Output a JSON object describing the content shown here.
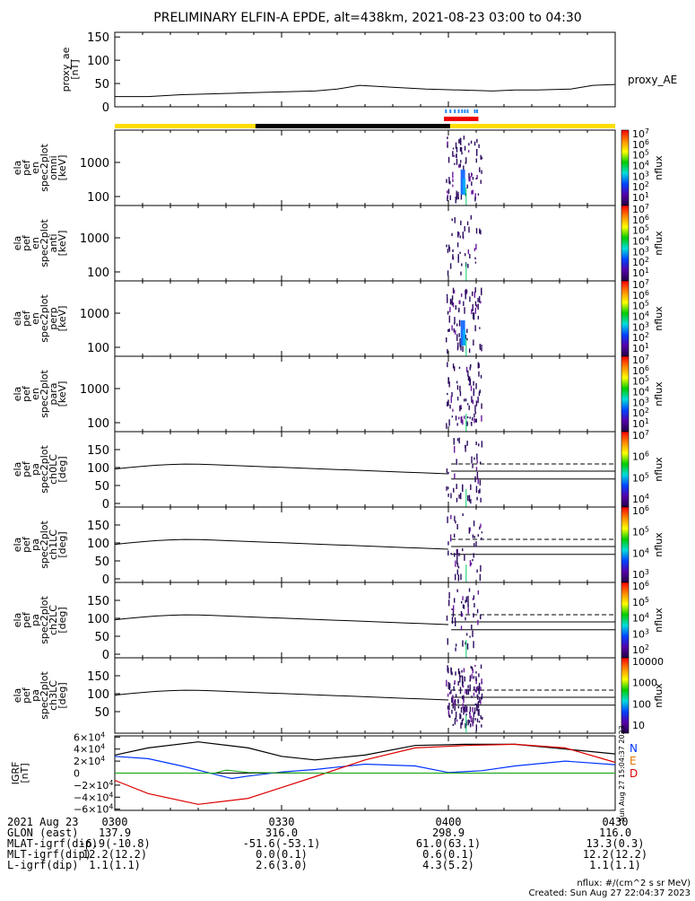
{
  "chart_data": {
    "type": "line",
    "title": "PRELIMINARY ELFIN-A EPDE, alt=438km, 2021-08-23 03:00 to 04:30",
    "ae_panel": {
      "ylabel_lines": [
        "proxy_ae",
        "[nT]"
      ],
      "ylim": [
        0,
        160
      ],
      "yticks": [
        "150",
        "100",
        "50",
        "0"
      ],
      "series": [
        {
          "name": "proxy_AE",
          "x": [
            0,
            6,
            12,
            18,
            24,
            30,
            36,
            40,
            44,
            50,
            56,
            62,
            68,
            72,
            76,
            82,
            86,
            90
          ],
          "values": [
            22,
            22,
            26,
            28,
            30,
            32,
            34,
            38,
            46,
            42,
            38,
            36,
            34,
            36,
            36,
            38,
            46,
            48
          ]
        }
      ]
    },
    "spectrogram_panels": [
      {
        "ylabel_lines": [
          "ela",
          "pef",
          "en",
          "spec2plot",
          "omni",
          "[keV]"
        ],
        "yticks": [
          "1000",
          "100"
        ],
        "colorbar_ticks": [
          "10^7",
          "10^6",
          "10^5",
          "10^4",
          "10^3",
          "10^2",
          "10^1"
        ],
        "colorbar_label": "nflux"
      },
      {
        "ylabel_lines": [
          "ela",
          "pef",
          "en",
          "spec2plot",
          "anti",
          "[keV]"
        ],
        "yticks": [
          "1000",
          "100"
        ],
        "colorbar_ticks": [
          "10^7",
          "10^6",
          "10^5",
          "10^4",
          "10^3",
          "10^2",
          "10^1"
        ],
        "colorbar_label": "nflux"
      },
      {
        "ylabel_lines": [
          "ela",
          "pef",
          "en",
          "spec2plot",
          "perp",
          "[keV]"
        ],
        "yticks": [
          "1000",
          "100"
        ],
        "colorbar_ticks": [
          "10^7",
          "10^6",
          "10^5",
          "10^4",
          "10^3",
          "10^2",
          "10^1"
        ],
        "colorbar_label": "nflux"
      },
      {
        "ylabel_lines": [
          "ela",
          "pef",
          "en",
          "spec2plot",
          "para",
          "[keV]"
        ],
        "yticks": [
          "1000",
          "100"
        ],
        "colorbar_ticks": [
          "10^7",
          "10^6",
          "10^5",
          "10^4",
          "10^3",
          "10^2",
          "10^1"
        ],
        "colorbar_label": "nflux"
      }
    ],
    "pa_panels": [
      {
        "ylabel_lines": [
          "ela",
          "pef",
          "pa",
          "spec2plot",
          "ch0LC",
          "[deg]"
        ],
        "yticks": [
          "150",
          "100",
          "50",
          "0"
        ],
        "colorbar_ticks": [
          "10^7",
          "10^6",
          "10^5",
          "10^4"
        ],
        "colorbar_label": "nflux"
      },
      {
        "ylabel_lines": [
          "ela",
          "pef",
          "pa",
          "spec2plot",
          "ch1LC",
          "[deg]"
        ],
        "yticks": [
          "150",
          "100",
          "50",
          "0"
        ],
        "colorbar_ticks": [
          "10^6",
          "10^5",
          "10^4",
          "10^3"
        ],
        "colorbar_label": "nflux"
      },
      {
        "ylabel_lines": [
          "ela",
          "pef",
          "pa",
          "spec2plot",
          "ch2LC",
          "[deg]"
        ],
        "yticks": [
          "150",
          "100",
          "50",
          "0"
        ],
        "colorbar_ticks": [
          "10^6",
          "10^5",
          "10^4",
          "10^3",
          "10^2"
        ],
        "colorbar_label": "nflux"
      },
      {
        "ylabel_lines": [
          "ela",
          "pef",
          "pa",
          "spec2plot",
          "ch3LC",
          "[deg]"
        ],
        "yticks": [
          "150",
          "100",
          "50"
        ],
        "colorbar_ticks": [
          "10000",
          "1000",
          "100",
          "10"
        ],
        "colorbar_label": "nflux"
      }
    ],
    "igrf_panel": {
      "ylabel_lines": [
        "IGRF",
        "[nT]"
      ],
      "ylim": [
        -62000,
        62000
      ],
      "yticks": [
        "6×10^4",
        "4×10^4",
        "2×10^4",
        "0",
        "−2×10^4",
        "−4×10^4",
        "−6×10^4"
      ],
      "legend": [
        "N",
        "E",
        "D"
      ],
      "series": [
        {
          "name": "N",
          "color": "#000000",
          "x": [
            0,
            6,
            15,
            24,
            30,
            36,
            45,
            54,
            63,
            72,
            81,
            90
          ],
          "values": [
            30000,
            42000,
            52000,
            42000,
            28000,
            22000,
            30000,
            46000,
            48000,
            48000,
            40000,
            32000
          ]
        },
        {
          "name": "E",
          "color": "#0033ff",
          "x": [
            0,
            6,
            12,
            18,
            21,
            24,
            30,
            36,
            45,
            54,
            60,
            66,
            72,
            81,
            90
          ],
          "values": [
            28000,
            24000,
            12000,
            -2000,
            -9000,
            -5000,
            2000,
            6000,
            15000,
            12000,
            1000,
            4000,
            12000,
            20000,
            14000
          ]
        },
        {
          "name": "D",
          "color": "#dd0000",
          "x": [
            0,
            6,
            15,
            24,
            30,
            36,
            45,
            54,
            63,
            72,
            81,
            90
          ],
          "values": [
            -12000,
            -34000,
            -52000,
            -42000,
            -24000,
            -6000,
            22000,
            42000,
            46000,
            48000,
            42000,
            18000
          ]
        },
        {
          "name": "Z",
          "color": "#22aa22",
          "x": [
            0,
            18,
            20,
            24,
            36,
            54,
            72,
            90
          ],
          "values": [
            0,
            0,
            5000,
            1000,
            0,
            0,
            0,
            0
          ]
        }
      ]
    },
    "time_axis": {
      "labels": [
        "0300",
        "0330",
        "0400",
        "0430"
      ],
      "minutes": [
        0,
        30,
        60,
        90
      ]
    },
    "ephemeris": {
      "rows": [
        {
          "label": "2021 Aug 23",
          "values": [
            "0300",
            "0330",
            "0400",
            "0430"
          ]
        },
        {
          "label": "GLON (east)",
          "values": [
            "137.9",
            "316.0",
            "298.9",
            "116.0"
          ]
        },
        {
          "label": "MLAT-igrf(dip)",
          "values": [
            "-6.9(-10.8)",
            "-51.6(-53.1)",
            "61.0(63.1)",
            "13.3(0.3)"
          ]
        },
        {
          "label": "MLT-igrf(dip)",
          "values": [
            "12.2(12.2)",
            "0.0(0.1)",
            "0.6(0.1)",
            "12.2(12.2)"
          ]
        },
        {
          "label": "L-igrf(dip)",
          "values": [
            "1.1(1.1)",
            "2.6(3.0)",
            "4.3(5.2)",
            "1.1(1.1)"
          ]
        }
      ]
    },
    "footer": {
      "units": "nflux: #/(cm^2 s sr MeV)",
      "created": "Created: Sun Aug 27 22:04:37 2023",
      "side_stamp": "Sun Aug 27 15:04:37 2023"
    }
  }
}
